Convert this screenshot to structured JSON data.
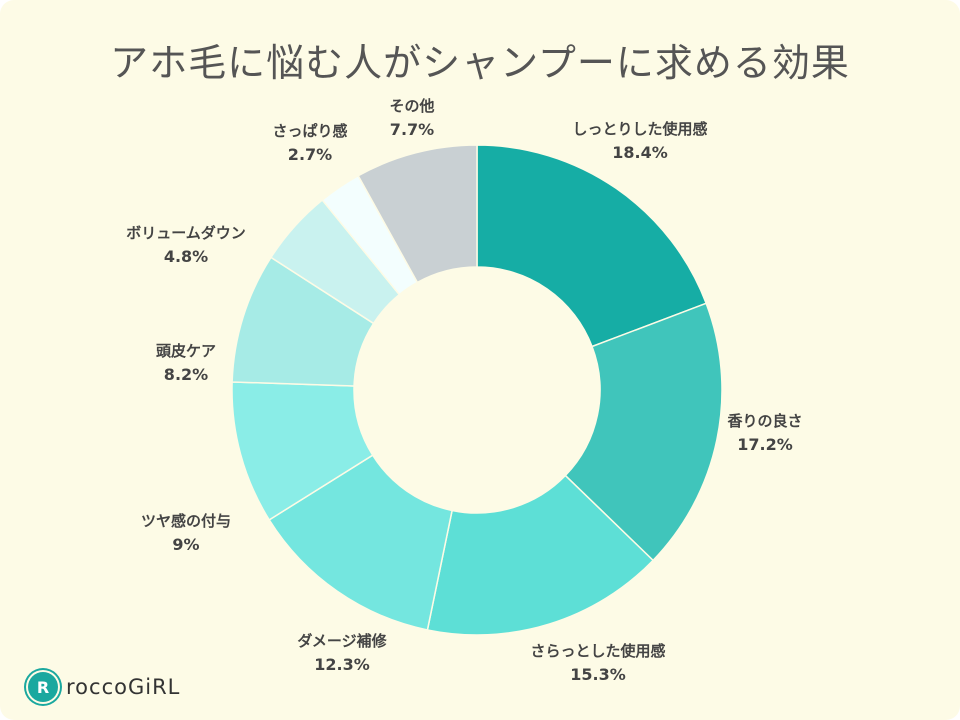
{
  "chart_data": {
    "type": "pie",
    "style": "donut",
    "title": "アホ毛に悩む人がシャンプーに求める効果",
    "start": "top",
    "direction": "clockwise",
    "categories": [
      "しっとりした使用感",
      "香りの良さ",
      "さらっとした使用感",
      "ダメージ補修",
      "ツヤ感の付与",
      "頭皮ケア",
      "ボリュームダウン",
      "さっぱり感",
      "その他"
    ],
    "values": [
      18.4,
      17.2,
      15.3,
      12.3,
      9,
      8.2,
      4.8,
      2.7,
      7.7
    ],
    "labels": [
      "18.4%",
      "17.2%",
      "15.3%",
      "12.3%",
      "9%",
      "8.2%",
      "4.8%",
      "2.7%",
      "7.7%"
    ],
    "colors": [
      "#16ada5",
      "#40c5bb",
      "#5ddfd6",
      "#74e6df",
      "#8aede7",
      "#a6ebe6",
      "#c9f2ef",
      "#e3f7f5",
      "#f3fefe",
      "#c9d0d3"
    ],
    "background": "#fdfbe6"
  },
  "logo": {
    "text": "roccoGiRL",
    "mark": "R",
    "color": "#1aa89f"
  }
}
